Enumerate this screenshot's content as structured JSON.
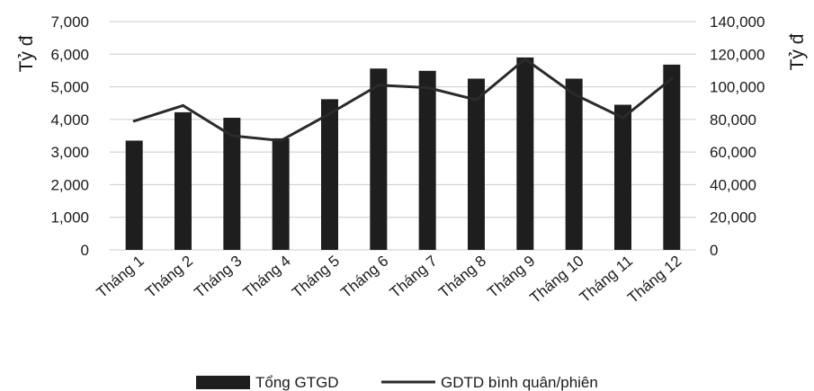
{
  "chart_data": {
    "type": "bar",
    "categories": [
      "Tháng 1",
      "Tháng 2",
      "Tháng 3",
      "Tháng 4",
      "Tháng 5",
      "Tháng 6",
      "Tháng 7",
      "Tháng 8",
      "Tháng 9",
      "Tháng 10",
      "Tháng 11",
      "Tháng 12"
    ],
    "series": [
      {
        "name": "Tổng GTGD",
        "type": "bar",
        "axis": "left",
        "values": [
          3350,
          4220,
          4050,
          3420,
          4620,
          5560,
          5490,
          5250,
          5900,
          5250,
          4450,
          5680
        ]
      },
      {
        "name": "GDTD bình quân/phiên",
        "type": "line",
        "axis": "right",
        "values": [
          79000,
          88500,
          70000,
          67000,
          83500,
          101000,
          99500,
          92000,
          117000,
          95500,
          81000,
          105000
        ]
      }
    ],
    "ylabel": "Tỷ đ",
    "y2label": "Tỷ đ",
    "ylim": [
      0,
      7000
    ],
    "y2lim": [
      0,
      140000
    ],
    "yticks": [
      "0",
      "1,000",
      "2,000",
      "3,000",
      "4,000",
      "5,000",
      "6,000",
      "7,000"
    ],
    "y2ticks": [
      "0",
      "20,000",
      "40,000",
      "60,000",
      "80,000",
      "100,000",
      "120,000",
      "140,000"
    ],
    "grid": true,
    "legend": "bottom",
    "colors": {
      "bar": "#1e1e1e",
      "line": "#2a2a2a",
      "grid": "#cccccc"
    }
  }
}
